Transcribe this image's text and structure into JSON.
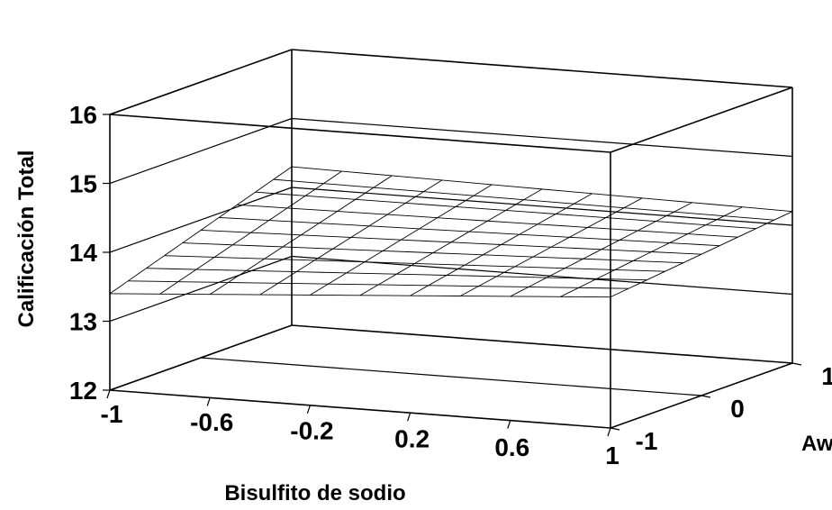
{
  "chart_data": {
    "type": "surface3d",
    "title": "",
    "xlabel": "Bisulfito de sodio",
    "ylabel": "Aw",
    "zlabel": "Calificación Total",
    "x_ticks": [
      "-1",
      "-0.6",
      "-0.2",
      "0.2",
      "0.6",
      "1"
    ],
    "y_ticks": [
      "-1",
      "0",
      "1"
    ],
    "z_ticks": [
      "12",
      "13",
      "14",
      "15",
      "16"
    ],
    "xlim": [
      -1,
      1
    ],
    "ylim": [
      -1,
      1
    ],
    "zlim": [
      12,
      16
    ],
    "grid": true,
    "surface": {
      "x": [
        -1,
        1
      ],
      "y": [
        -1,
        1
      ],
      "z_at_corners": {
        "x-1_y-1": 13.4,
        "x1_y-1": 13.9,
        "x-1_y1": 14.3,
        "x1_y1": 14.2
      }
    }
  }
}
